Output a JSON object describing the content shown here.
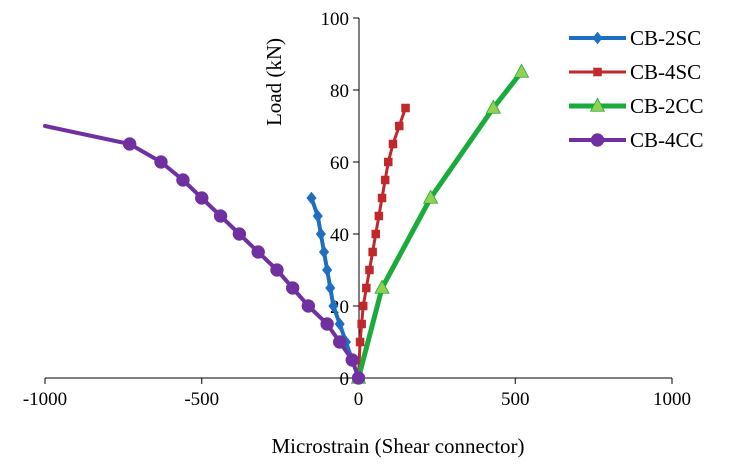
{
  "chart_data": {
    "type": "line",
    "title": "",
    "xlabel": "Microstrain (Shear connector)",
    "ylabel": "Load (kN)",
    "xlim": [
      -1000,
      1000
    ],
    "ylim": [
      0,
      100
    ],
    "xticks": [
      -1000,
      -500,
      0,
      500,
      1000
    ],
    "yticks": [
      0,
      20,
      40,
      60,
      80,
      100
    ],
    "grid": false,
    "legend": "top-right",
    "series": [
      {
        "name": "CB-2SC",
        "color": "#1f6fc0",
        "marker": "diamond",
        "points": [
          [
            0,
            0
          ],
          [
            -20,
            5
          ],
          [
            -40,
            10
          ],
          [
            -60,
            15
          ],
          [
            -80,
            20
          ],
          [
            -90,
            25
          ],
          [
            -100,
            30
          ],
          [
            -110,
            35
          ],
          [
            -120,
            40
          ],
          [
            -130,
            45
          ],
          [
            -150,
            50
          ]
        ]
      },
      {
        "name": "CB-4SC",
        "color": "#c0282d",
        "marker": "square",
        "points": [
          [
            0,
            0
          ],
          [
            5,
            10
          ],
          [
            10,
            15
          ],
          [
            15,
            20
          ],
          [
            25,
            25
          ],
          [
            35,
            30
          ],
          [
            45,
            35
          ],
          [
            55,
            40
          ],
          [
            65,
            45
          ],
          [
            75,
            50
          ],
          [
            85,
            55
          ],
          [
            95,
            60
          ],
          [
            110,
            65
          ],
          [
            130,
            70
          ],
          [
            150,
            75
          ]
        ]
      },
      {
        "name": "CB-2CC",
        "color": "#1aab3c",
        "marker": "triangle",
        "points": [
          [
            0,
            0
          ],
          [
            75,
            25
          ],
          [
            230,
            50
          ],
          [
            430,
            75
          ],
          [
            520,
            85
          ]
        ]
      },
      {
        "name": "CB-4CC",
        "color": "#7030a0",
        "marker": "circle",
        "points": [
          [
            0,
            0
          ],
          [
            -20,
            5
          ],
          [
            -60,
            10
          ],
          [
            -100,
            15
          ],
          [
            -160,
            20
          ],
          [
            -210,
            25
          ],
          [
            -260,
            30
          ],
          [
            -320,
            35
          ],
          [
            -380,
            40
          ],
          [
            -440,
            45
          ],
          [
            -500,
            50
          ],
          [
            -560,
            55
          ],
          [
            -630,
            60
          ],
          [
            -730,
            65
          ],
          [
            -1000,
            70
          ]
        ],
        "marker_points": [
          [
            0,
            0
          ],
          [
            -20,
            5
          ],
          [
            -60,
            10
          ],
          [
            -100,
            15
          ],
          [
            -160,
            20
          ],
          [
            -210,
            25
          ],
          [
            -260,
            30
          ],
          [
            -320,
            35
          ],
          [
            -380,
            40
          ],
          [
            -440,
            45
          ],
          [
            -500,
            50
          ],
          [
            -560,
            55
          ],
          [
            -630,
            60
          ],
          [
            -730,
            65
          ]
        ]
      }
    ]
  }
}
